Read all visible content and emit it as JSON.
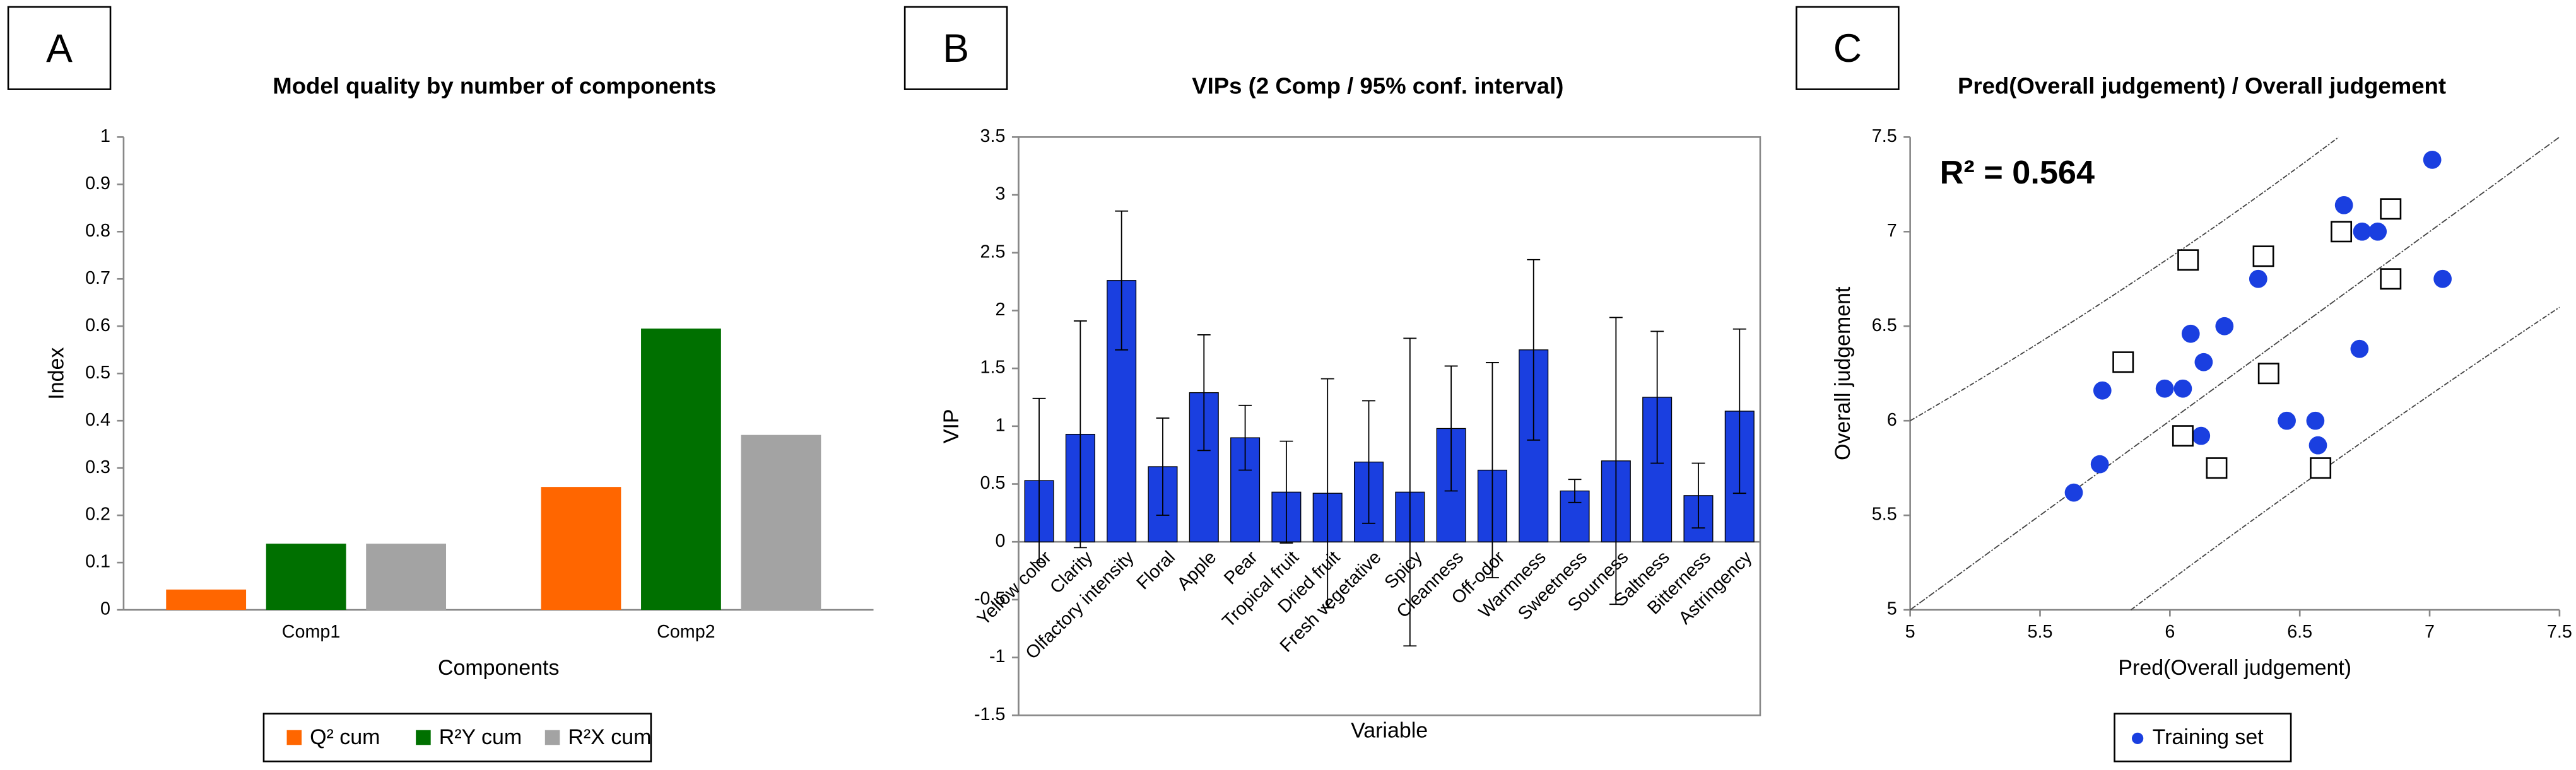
{
  "chart_data": [
    {
      "type": "bar",
      "label": "A",
      "title": "Model quality by number of components",
      "x_label": "Components",
      "y_label": "Index",
      "categories": [
        "Comp1",
        "Comp2"
      ],
      "series": [
        {
          "name": "Q² cum",
          "color": "#ff6600",
          "values": [
            0.043,
            0.26
          ]
        },
        {
          "name": "R²Y cum",
          "color": "#007000",
          "values": [
            0.14,
            0.595
          ]
        },
        {
          "name": "R²X cum",
          "color": "#a3a3a3",
          "values": [
            0.14,
            0.37
          ]
        }
      ],
      "ylim": [
        0,
        1
      ],
      "yticks": [
        0,
        0.1,
        0.2,
        0.3,
        0.4,
        0.5,
        0.6,
        0.7,
        0.8,
        0.9,
        1
      ],
      "legend": "bottom"
    },
    {
      "type": "bar",
      "label": "B",
      "title": "VIPs (2 Comp / 95% conf. interval)",
      "x_label": "Variable",
      "y_label": "VIP",
      "categories": [
        "Yellow color",
        "Clarity",
        "Olfactory intensity",
        "Floral",
        "Apple",
        "Pear",
        "Tropical fruit",
        "Dried fruit",
        "Fresh vegetative",
        "Spicy",
        "Cleanness",
        "Off-odor",
        "Warmness",
        "Sweetness",
        "Sourness",
        "Saltness",
        "Bitterness",
        "Astringency"
      ],
      "color": "#1a3fe0",
      "values": [
        0.53,
        0.93,
        2.26,
        0.65,
        1.29,
        0.9,
        0.43,
        0.42,
        0.69,
        0.43,
        0.98,
        0.62,
        1.66,
        0.44,
        0.7,
        1.25,
        0.4,
        1.13
      ],
      "errors": [
        0.71,
        0.98,
        0.6,
        0.42,
        0.5,
        0.28,
        0.44,
        0.99,
        0.53,
        1.33,
        0.54,
        0.93,
        0.78,
        0.1,
        1.24,
        0.57,
        0.28,
        0.71
      ],
      "ylim": [
        -1.5,
        3.5
      ],
      "yticks": [
        -1.5,
        -1,
        -0.5,
        0,
        0.5,
        1,
        1.5,
        2,
        2.5,
        3,
        3.5
      ]
    },
    {
      "type": "scatter",
      "label": "C",
      "title": "Pred(Overall judgement) / Overall judgement",
      "x_label": "Pred(Overall judgement)",
      "y_label": "Overall judgement",
      "annotation": "R²  = 0.564",
      "series": [
        {
          "name": "Training set",
          "color": "#1a3fe0",
          "marker": "circle",
          "x": [
            7.01,
            6.67,
            6.74,
            6.8,
            6.34,
            7.05,
            6.21,
            6.08,
            6.13,
            6.73,
            5.74,
            5.98,
            6.05,
            6.12,
            6.45,
            6.56,
            6.57,
            5.73,
            5.63
          ],
          "y": [
            7.38,
            7.14,
            7.0,
            7.0,
            6.75,
            6.75,
            6.5,
            6.46,
            6.31,
            6.38,
            6.16,
            6.17,
            6.17,
            5.92,
            6.0,
            6.0,
            5.87,
            5.77,
            5.62
          ]
        },
        {
          "color": "#000000",
          "marker": "square",
          "x": [
            6.07,
            6.36,
            6.66,
            6.85,
            5.82,
            6.38,
            6.05,
            6.18,
            6.58,
            6.85
          ],
          "y": [
            6.85,
            6.87,
            7.0,
            7.12,
            6.31,
            6.25,
            5.92,
            5.75,
            5.75,
            6.75
          ]
        }
      ],
      "xlim": [
        5,
        7.5
      ],
      "xticks": [
        5,
        5.5,
        6,
        6.5,
        7,
        7.5
      ],
      "ylim": [
        5,
        7.5
      ],
      "yticks": [
        5,
        5.5,
        6,
        6.5,
        7,
        7.5
      ],
      "legend": "bottom"
    }
  ]
}
